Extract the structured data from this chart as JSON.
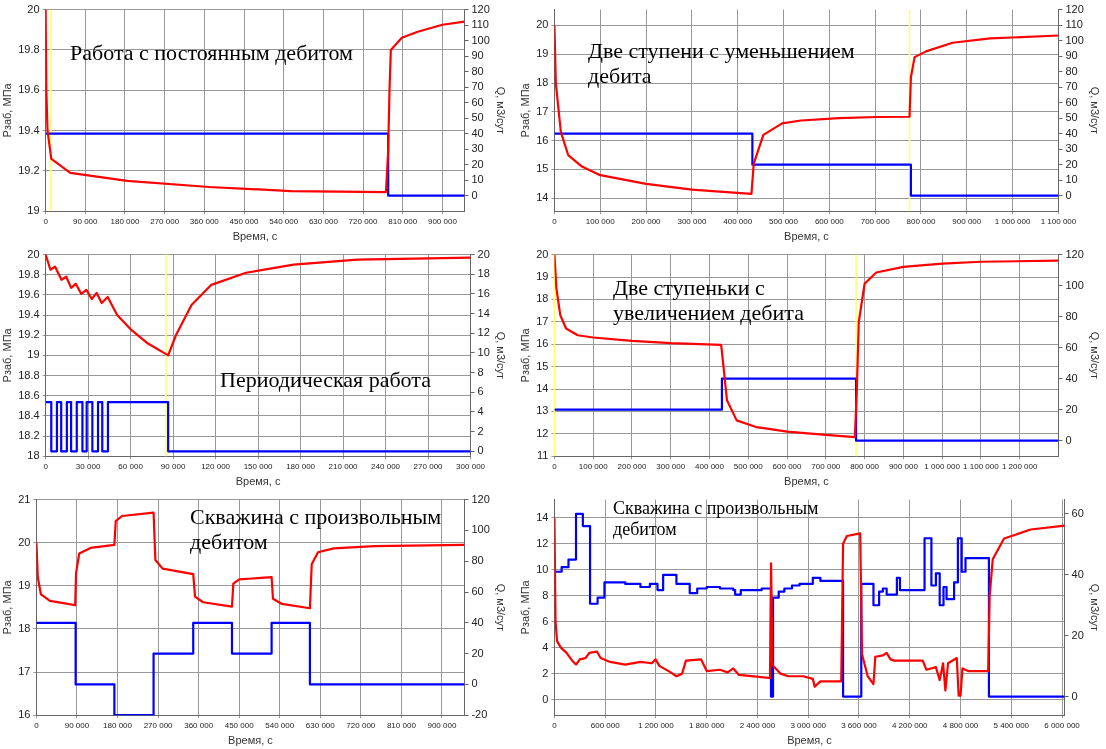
{
  "chart_data": [
    {
      "type": "line",
      "annotations": [
        "Работа с постоянным дебитом"
      ],
      "xlabel": "Время, с",
      "ylabel": "Рзаб, МПа",
      "y2label": "Q, м3/сут",
      "grid": true,
      "marker": "none",
      "xlim": [
        0,
        950000
      ],
      "xticks": [
        {
          "value": 0,
          "label": "0"
        },
        {
          "value": 90000,
          "label": "90 000"
        },
        {
          "value": 180000,
          "label": "180 000"
        },
        {
          "value": 270000,
          "label": "270 000"
        },
        {
          "value": 360000,
          "label": "360 000"
        },
        {
          "value": 450000,
          "label": "450 000"
        },
        {
          "value": 540000,
          "label": "540 000"
        },
        {
          "value": 630000,
          "label": "630 000"
        },
        {
          "value": 720000,
          "label": "720 000"
        },
        {
          "value": 810000,
          "label": "810 000"
        },
        {
          "value": 900000,
          "label": "900 000"
        }
      ],
      "ylim": [
        19,
        20
      ],
      "yticks": [
        19,
        19.2,
        19.4,
        19.6,
        19.8,
        20
      ],
      "y2lim": [
        -10,
        120
      ],
      "y2ticks": [
        0,
        10,
        20,
        30,
        40,
        50,
        60,
        70,
        80,
        90,
        100,
        110,
        120
      ],
      "ref_lines": [
        {
          "axis": "x",
          "value": 12000,
          "color": "#ffff66"
        }
      ],
      "series": [
        {
          "type": "line",
          "color": "#ff0000",
          "x": [
            0,
            1600,
            4300,
            12900,
            56000,
            185000,
            371000,
            557000,
            772000,
            777000,
            780000,
            783000,
            808000,
            844000,
            900000,
            950000
          ],
          "values": [
            20,
            19.6,
            19.4,
            19.26,
            19.19,
            19.15,
            19.12,
            19.1,
            19.095,
            19.3,
            19.6,
            19.8,
            19.86,
            19.89,
            19.925,
            19.94
          ]
        },
        {
          "type": "step",
          "axis": "y2",
          "color": "#0000ff",
          "x": [
            0,
            777000,
            950000
          ],
          "values": [
            40,
            0,
            0
          ]
        }
      ]
    },
    {
      "type": "line",
      "annotations": [
        "Две ступени с уменьшением дебита"
      ],
      "xlabel": "Время, с",
      "ylabel": "Рзаб, МПа",
      "y2label": "Q, м3/сут",
      "grid": true,
      "marker": "none",
      "xlim": [
        0,
        1100000
      ],
      "xticks": [
        {
          "value": 0,
          "label": "0"
        },
        {
          "value": 100000,
          "label": "100 000"
        },
        {
          "value": 200000,
          "label": "200 000"
        },
        {
          "value": 300000,
          "label": "300 000"
        },
        {
          "value": 400000,
          "label": "400 000"
        },
        {
          "value": 500000,
          "label": "500 000"
        },
        {
          "value": 600000,
          "label": "600 000"
        },
        {
          "value": 700000,
          "label": "700 000"
        },
        {
          "value": 800000,
          "label": "800 000"
        },
        {
          "value": 900000,
          "label": "900 000"
        },
        {
          "value": 1000000,
          "label": "1 000 000"
        },
        {
          "value": 1100000,
          "label": "1 100 000"
        }
      ],
      "ylim": [
        13.55,
        20.55
      ],
      "yticks": [
        14,
        15,
        16,
        17,
        18,
        19,
        20
      ],
      "y2lim": [
        -10,
        120
      ],
      "y2ticks": [
        0,
        10,
        20,
        30,
        40,
        50,
        60,
        70,
        80,
        90,
        100,
        110,
        120
      ],
      "ref_lines": [
        {
          "axis": "x",
          "value": 775000,
          "color": "#ffff66"
        }
      ],
      "series": [
        {
          "type": "line",
          "color": "#ff0000",
          "x": [
            0,
            3000,
            14000,
            30000,
            60000,
            100000,
            200000,
            300000,
            430000,
            435000,
            456000,
            497000,
            538000,
            621000,
            703000,
            775000,
            778000,
            786000,
            811000,
            869000,
            951000,
            1100000
          ],
          "values": [
            20,
            18,
            16.3,
            15.5,
            15.1,
            14.8,
            14.5,
            14.3,
            14.15,
            15.2,
            16.2,
            16.6,
            16.7,
            16.78,
            16.82,
            16.83,
            18.2,
            18.9,
            19.1,
            19.4,
            19.55,
            19.65
          ]
        },
        {
          "type": "step",
          "axis": "y2",
          "color": "#0000ff",
          "x": [
            0,
            432000,
            778000,
            1100000
          ],
          "values": [
            40,
            20,
            0,
            0
          ]
        }
      ]
    },
    {
      "type": "line",
      "annotations": [
        "Периодическая работа"
      ],
      "xlabel": "Время, с",
      "ylabel": "Рзаб, МПа",
      "y2label": "Q, м3/сут",
      "grid": true,
      "marker": "none",
      "xlim": [
        0,
        300000
      ],
      "xticks": [
        {
          "value": 0,
          "label": "0"
        },
        {
          "value": 30000,
          "label": "30 000"
        },
        {
          "value": 60000,
          "label": "60 000"
        },
        {
          "value": 90000,
          "label": "90 000"
        },
        {
          "value": 120000,
          "label": "120 000"
        },
        {
          "value": 150000,
          "label": "150 000"
        },
        {
          "value": 180000,
          "label": "180 000"
        },
        {
          "value": 210000,
          "label": "210 000"
        },
        {
          "value": 240000,
          "label": "240 000"
        },
        {
          "value": 270000,
          "label": "270 000"
        },
        {
          "value": 300000,
          "label": "300 000"
        }
      ],
      "ylim": [
        18,
        20
      ],
      "yticks": [
        18,
        18.2,
        18.4,
        18.6,
        18.8,
        19,
        19.2,
        19.4,
        19.6,
        19.8,
        20
      ],
      "y2lim": [
        -0.5,
        20
      ],
      "y2ticks": [
        0,
        2,
        4,
        6,
        8,
        10,
        12,
        14,
        16,
        18,
        20
      ],
      "ref_lines": [
        {
          "axis": "x",
          "value": 85000,
          "color": "#ffff66"
        }
      ],
      "series": [
        {
          "type": "line",
          "color": "#ff0000",
          "x": [
            0,
            3400,
            6700,
            11200,
            14600,
            18000,
            21300,
            25200,
            28800,
            32600,
            36000,
            39600,
            43800,
            50500,
            60700,
            72000,
            86500,
            92000,
            103000,
            117000,
            141500,
            175000,
            220000,
            300000
          ],
          "values": [
            20,
            19.85,
            19.88,
            19.75,
            19.78,
            19.67,
            19.71,
            19.61,
            19.65,
            19.56,
            19.62,
            19.52,
            19.58,
            19.4,
            19.25,
            19.12,
            19,
            19.2,
            19.5,
            19.7,
            19.82,
            19.9,
            19.95,
            19.97
          ]
        },
        {
          "type": "step",
          "axis": "y2",
          "color": "#0000ff",
          "x": [
            0,
            4000,
            8000,
            11000,
            15000,
            18000,
            22000,
            26000,
            29000,
            33000,
            37000,
            40000,
            44000,
            86500,
            300000
          ],
          "values": [
            5,
            0,
            5,
            0,
            5,
            0,
            5,
            0,
            5,
            0,
            5,
            0,
            5,
            0,
            0
          ]
        }
      ]
    },
    {
      "type": "line",
      "annotations": [
        "Две ступеньки с увеличением дебита"
      ],
      "xlabel": "Время, с",
      "ylabel": "Рзаб, МПа",
      "y2label": "Q, м3/сут",
      "grid": true,
      "marker": "none",
      "xlim": [
        0,
        1300000
      ],
      "xticks": [
        {
          "value": 0,
          "label": "0"
        },
        {
          "value": 100000,
          "label": "100 000"
        },
        {
          "value": 200000,
          "label": "200 000"
        },
        {
          "value": 300000,
          "label": "300 000"
        },
        {
          "value": 400000,
          "label": "400 000"
        },
        {
          "value": 500000,
          "label": "500 000"
        },
        {
          "value": 600000,
          "label": "600 000"
        },
        {
          "value": 700000,
          "label": "700 000"
        },
        {
          "value": 800000,
          "label": "800 000"
        },
        {
          "value": 900000,
          "label": "900 000"
        },
        {
          "value": 1000000,
          "label": "1 000 000"
        },
        {
          "value": 1100000,
          "label": "1 100 000"
        },
        {
          "value": 1200000,
          "label": "1 200 000"
        }
      ],
      "ylim": [
        11,
        20
      ],
      "yticks": [
        11,
        12,
        13,
        14,
        15,
        16,
        17,
        18,
        19,
        20
      ],
      "y2lim": [
        -10,
        120
      ],
      "y2ticks": [
        0,
        20,
        40,
        60,
        80,
        100,
        120
      ],
      "ref_lines": [
        {
          "axis": "x",
          "value": 0,
          "color": "#ffff66"
        },
        {
          "axis": "x",
          "value": 778000,
          "color": "#ffff66"
        }
      ],
      "series": [
        {
          "type": "line",
          "color": "#ff0000",
          "x": [
            0,
            5000,
            15000,
            30000,
            60000,
            100000,
            200000,
            300000,
            430000,
            436000,
            445000,
            470000,
            520000,
            600000,
            700000,
            775000,
            780000,
            785000,
            800000,
            830000,
            900000,
            1000000,
            1100000,
            1300000
          ],
          "values": [
            20,
            18.5,
            17.3,
            16.7,
            16.4,
            16.3,
            16.15,
            16.05,
            15.97,
            15,
            13.5,
            12.6,
            12.3,
            12.1,
            11.95,
            11.85,
            14,
            17,
            18.7,
            19.2,
            19.45,
            19.6,
            19.68,
            19.73
          ]
        },
        {
          "type": "step",
          "axis": "y2",
          "color": "#0000ff",
          "x": [
            0,
            432000,
            778000,
            1300000
          ],
          "values": [
            20,
            40,
            0,
            0
          ]
        }
      ]
    },
    {
      "type": "line",
      "annotations": [
        "Скважина с произвольным дебитом"
      ],
      "xlabel": "Время, с",
      "ylabel": "Рзаб, МПа",
      "y2label": "Q, м3/сут",
      "grid": true,
      "marker": "none",
      "xlim": [
        0,
        950000
      ],
      "xticks": [
        {
          "value": 0,
          "label": "0"
        },
        {
          "value": 90000,
          "label": "90 000"
        },
        {
          "value": 180000,
          "label": "180 000"
        },
        {
          "value": 270000,
          "label": "270 000"
        },
        {
          "value": 360000,
          "label": "360 000"
        },
        {
          "value": 450000,
          "label": "450 000"
        },
        {
          "value": 540000,
          "label": "540 000"
        },
        {
          "value": 630000,
          "label": "630 000"
        },
        {
          "value": 720000,
          "label": "720 000"
        },
        {
          "value": 810000,
          "label": "810 000"
        },
        {
          "value": 900000,
          "label": "900 000"
        }
      ],
      "ylim": [
        16,
        21
      ],
      "yticks": [
        16,
        17,
        18,
        19,
        20,
        21
      ],
      "y2lim": [
        -20,
        120
      ],
      "y2ticks": [
        -20,
        0,
        20,
        40,
        60,
        80,
        100,
        120
      ],
      "series": [
        {
          "type": "line",
          "color": "#ff0000",
          "x": [
            0,
            3000,
            10000,
            30000,
            60000,
            86000,
            88000,
            95000,
            120000,
            173000,
            176000,
            190000,
            260000,
            264000,
            280000,
            348000,
            352000,
            370000,
            434000,
            437000,
            450000,
            522000,
            525000,
            545000,
            607000,
            611000,
            625000,
            660000,
            750000,
            950000
          ],
          "values": [
            20,
            19.2,
            18.8,
            18.65,
            18.6,
            18.55,
            19.3,
            19.75,
            19.88,
            19.95,
            20.5,
            20.62,
            20.7,
            19.6,
            19.4,
            19.27,
            18.75,
            18.62,
            18.52,
            19.05,
            19.15,
            19.2,
            18.7,
            18.58,
            18.48,
            19.5,
            19.78,
            19.87,
            19.92,
            19.95
          ]
        },
        {
          "type": "step",
          "axis": "y2",
          "color": "#0000ff",
          "x": [
            0,
            87000,
            173000,
            260000,
            348000,
            434000,
            522000,
            607000,
            950000
          ],
          "values": [
            40,
            0,
            -20,
            20,
            40,
            20,
            40,
            0,
            0
          ]
        }
      ]
    },
    {
      "type": "line",
      "annotations": [
        "Скважина с произвольным дебитом"
      ],
      "xlabel": "Время, с",
      "ylabel": "Рзаб, МПа",
      "y2label": "Q, м3/сут",
      "grid": true,
      "marker": "none",
      "xlim": [
        0,
        6030000
      ],
      "xticks": [
        {
          "value": 0,
          "label": "0"
        },
        {
          "value": 600000,
          "label": "600 000"
        },
        {
          "value": 1200000,
          "label": "1 200 000"
        },
        {
          "value": 1800000,
          "label": "1 800 000"
        },
        {
          "value": 2400000,
          "label": "2 400 000"
        },
        {
          "value": 3000000,
          "label": "3 000 000"
        },
        {
          "value": 3600000,
          "label": "3 600 000"
        },
        {
          "value": 4200000,
          "label": "4 200 000"
        },
        {
          "value": 4800000,
          "label": "4 800 000"
        },
        {
          "value": 5400000,
          "label": "5 400 000"
        },
        {
          "value": 6000000,
          "label": "6 000 000"
        }
      ],
      "ylim": [
        -1.2,
        15.4
      ],
      "yticks": [
        0,
        2,
        4,
        6,
        8,
        10,
        12,
        14
      ],
      "y2lim": [
        -6.1,
        64.7
      ],
      "y2ticks": [
        0,
        20,
        40,
        60
      ],
      "series": [
        {
          "type": "line",
          "color": "#ff0000",
          "x": [
            0,
            13000,
            31000,
            76000,
            143000,
            210000,
            255000,
            300000,
            367000,
            412000,
            502000,
            546000,
            658000,
            837000,
            1016000,
            1151000,
            1196000,
            1240000,
            1375000,
            1442000,
            1509000,
            1554000,
            1733000,
            1800000,
            1957000,
            2046000,
            2114000,
            2181000,
            2494000,
            2548000,
            2561000,
            2575000,
            2584000,
            2673000,
            2763000,
            2942000,
            3054000,
            3076000,
            3144000,
            3390000,
            3412000,
            3457000,
            3614000,
            3636000,
            3703000,
            3771000,
            3793000,
            3882000,
            3927000,
            3972000,
            4017000,
            4353000,
            4397000,
            4509000,
            4554000,
            4594000,
            4621000,
            4653000,
            4756000,
            4778000,
            4800000,
            4823000,
            4890000,
            5127000,
            5145000,
            5181000,
            5315000,
            5629000,
            6030000
          ],
          "values": [
            14,
            6,
            4.5,
            4,
            3.6,
            3,
            2.7,
            3.1,
            3.2,
            3.6,
            3.7,
            3.2,
            2.9,
            2.7,
            2.9,
            2.8,
            3.1,
            2.6,
            2.1,
            1.8,
            2,
            3,
            3.1,
            2.2,
            2.3,
            2.1,
            2.4,
            1.9,
            1.7,
            1.65,
            10.5,
            3,
            2.6,
            2,
            1.8,
            1.8,
            1.6,
            1,
            1.4,
            1.4,
            12,
            12.6,
            12.8,
            3.5,
            1.8,
            1.2,
            3.3,
            3.4,
            3.6,
            3.1,
            3,
            3,
            2.3,
            2.5,
            1.5,
            2.8,
            0.7,
            2.8,
            3.2,
            0.3,
            0.3,
            2.4,
            2.2,
            2.2,
            8,
            10.8,
            12.4,
            13.1,
            13.4
          ]
        },
        {
          "type": "step",
          "axis": "y2",
          "color": "#0000ff",
          "x": [
            0,
            85000,
            166000,
            255000,
            336000,
            421000,
            510000,
            591000,
            837000,
            1016000,
            1128000,
            1218000,
            1285000,
            1442000,
            1599000,
            1688000,
            1800000,
            1957000,
            2114000,
            2136000,
            2203000,
            2450000,
            2560000,
            2584000,
            2651000,
            2718000,
            2808000,
            2897000,
            3054000,
            3144000,
            3412000,
            3627000,
            3771000,
            3838000,
            3882000,
            3927000,
            4048000,
            4084000,
            4375000,
            4456000,
            4509000,
            4554000,
            4599000,
            4635000,
            4724000,
            4769000,
            4814000,
            4859000,
            5136000,
            6030000
          ],
          "values": [
            41,
            42.5,
            45,
            60,
            56,
            30.5,
            32.5,
            37.5,
            37,
            36,
            37,
            35,
            40,
            37,
            34,
            35.5,
            36,
            35.5,
            35,
            33.5,
            35,
            35.5,
            0,
            32.5,
            34.5,
            35.5,
            36.5,
            37,
            39,
            38,
            0,
            37,
            30,
            34.5,
            35.5,
            33.5,
            39,
            35,
            52,
            36.5,
            40.5,
            30,
            36,
            32,
            37.5,
            52,
            41,
            45.5,
            0,
            0
          ]
        }
      ]
    }
  ]
}
